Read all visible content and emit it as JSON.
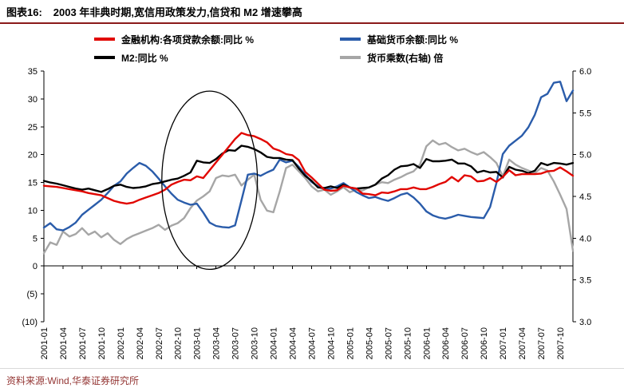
{
  "header": {
    "tag": "图表16:",
    "title": "2003 年非典时期,宽信用政策发力,信贷和 M2 增速攀高"
  },
  "source": "资料来源:Wind,华泰证券研究所",
  "colors": {
    "loans": "#e10600",
    "base_money": "#2a5caa",
    "m2": "#000000",
    "multiplier": "#a6a6a6",
    "rule": "#8b1a1a",
    "source_text": "#943634"
  },
  "chart_data": {
    "type": "line",
    "title": "2003 年非典时期,宽信用政策发力,信贷和 M2 增速攀高",
    "grid": false,
    "legend_position": "top",
    "x_tick_every": 3,
    "x_months": [
      "2001-01",
      "2001-02",
      "2001-03",
      "2001-04",
      "2001-05",
      "2001-06",
      "2001-07",
      "2001-08",
      "2001-09",
      "2001-10",
      "2001-11",
      "2001-12",
      "2002-01",
      "2002-02",
      "2002-03",
      "2002-04",
      "2002-05",
      "2002-06",
      "2002-07",
      "2002-08",
      "2002-09",
      "2002-10",
      "2002-11",
      "2002-12",
      "2003-01",
      "2003-02",
      "2003-03",
      "2003-04",
      "2003-05",
      "2003-06",
      "2003-07",
      "2003-08",
      "2003-09",
      "2003-10",
      "2003-11",
      "2003-12",
      "2004-01",
      "2004-02",
      "2004-03",
      "2004-04",
      "2004-05",
      "2004-06",
      "2004-07",
      "2004-08",
      "2004-09",
      "2004-10",
      "2004-11",
      "2004-12",
      "2005-01",
      "2005-02",
      "2005-03",
      "2005-04",
      "2005-05",
      "2005-06",
      "2005-07",
      "2005-08",
      "2005-09",
      "2005-10",
      "2005-11",
      "2005-12",
      "2006-01",
      "2006-02",
      "2006-03",
      "2006-04",
      "2006-05",
      "2006-06",
      "2006-07",
      "2006-08",
      "2006-09",
      "2006-10",
      "2006-11",
      "2006-12",
      "2007-01",
      "2007-02",
      "2007-03",
      "2007-04",
      "2007-05",
      "2007-06",
      "2007-07",
      "2007-08",
      "2007-09",
      "2007-10",
      "2007-11",
      "2007-12"
    ],
    "left_axis": {
      "min": -10,
      "max": 35,
      "tick_values": [
        35,
        30,
        25,
        20,
        15,
        10,
        5,
        0,
        -5,
        -10
      ],
      "tick_labels": [
        "35",
        "30",
        "25",
        "20",
        "15",
        "10",
        "5",
        "0",
        "(5)",
        "(10)"
      ]
    },
    "right_axis": {
      "min": 3.0,
      "max": 6.0,
      "tick_values": [
        6.0,
        5.5,
        5.0,
        4.5,
        4.0,
        3.5,
        3.0
      ],
      "tick_labels": [
        "6.0",
        "5.5",
        "5.0",
        "4.5",
        "4.0",
        "3.5",
        "3.0"
      ]
    },
    "series": [
      {
        "key": "loans_yoy",
        "name": "金融机构:各项贷款余额:同比 %",
        "axis": "left",
        "color": "#e10600",
        "values": [
          14.4,
          14.3,
          14.2,
          14.0,
          13.8,
          13.6,
          13.4,
          13.1,
          12.9,
          12.7,
          12.2,
          11.7,
          11.4,
          11.2,
          11.4,
          11.9,
          12.3,
          12.7,
          13.1,
          13.7,
          14.6,
          15.1,
          15.5,
          15.4,
          16.1,
          15.8,
          17.2,
          18.6,
          20.0,
          21.4,
          22.8,
          23.9,
          23.5,
          23.3,
          22.8,
          22.2,
          21.1,
          20.7,
          20.1,
          19.9,
          19.0,
          16.9,
          15.9,
          14.8,
          13.7,
          13.5,
          13.6,
          14.4,
          14.1,
          13.9,
          13.0,
          12.9,
          12.7,
          13.2,
          13.1,
          13.4,
          13.8,
          13.8,
          14.1,
          13.8,
          13.8,
          14.2,
          14.7,
          15.1,
          16.0,
          15.2,
          16.3,
          16.1,
          15.2,
          15.3,
          15.8,
          15.1,
          16.0,
          17.2,
          16.3,
          16.5,
          16.5,
          16.5,
          16.6,
          17.0,
          17.1,
          17.7,
          17.0,
          16.2
        ]
      },
      {
        "key": "base_money_yoy",
        "name": "基础货币余额:同比 %",
        "axis": "left",
        "color": "#2a5caa",
        "values": [
          6.9,
          7.7,
          6.6,
          6.4,
          7.0,
          7.8,
          9.2,
          10.1,
          11.0,
          11.9,
          13.1,
          14.4,
          15.2,
          16.6,
          17.6,
          18.5,
          18.0,
          17.0,
          15.7,
          14.3,
          13.0,
          11.9,
          11.4,
          11.0,
          11.2,
          9.6,
          7.8,
          7.2,
          7.0,
          6.9,
          7.3,
          11.8,
          16.4,
          16.6,
          16.2,
          16.8,
          17.3,
          19.1,
          18.6,
          18.9,
          17.8,
          16.4,
          15.1,
          14.3,
          13.8,
          13.9,
          14.3,
          14.9,
          14.1,
          13.3,
          12.7,
          12.2,
          12.4,
          12.0,
          11.7,
          12.2,
          12.8,
          13.1,
          12.3,
          11.2,
          9.8,
          9.1,
          8.7,
          8.5,
          8.8,
          9.2,
          9.0,
          8.8,
          8.7,
          8.6,
          10.6,
          14.9,
          20.1,
          21.6,
          22.5,
          23.4,
          24.9,
          27.1,
          30.3,
          30.9,
          32.9,
          33.1,
          29.6,
          31.5
        ]
      },
      {
        "key": "m2_yoy",
        "name": "M2:同比 %",
        "axis": "left",
        "color": "#000000",
        "values": [
          15.3,
          15.0,
          14.8,
          14.5,
          14.2,
          13.9,
          13.7,
          13.9,
          13.6,
          13.3,
          13.8,
          14.4,
          14.6,
          14.2,
          14.0,
          14.1,
          14.3,
          14.7,
          14.9,
          15.2,
          15.5,
          15.7,
          16.2,
          16.8,
          18.9,
          18.6,
          18.5,
          19.2,
          20.2,
          20.8,
          20.7,
          21.6,
          21.4,
          21.0,
          20.4,
          19.6,
          19.4,
          19.4,
          19.1,
          19.0,
          17.5,
          16.2,
          15.3,
          14.1,
          14.0,
          14.3,
          14.0,
          14.6,
          14.1,
          13.9,
          14.0,
          14.1,
          14.6,
          15.7,
          16.3,
          17.3,
          17.9,
          18.0,
          18.3,
          17.6,
          19.2,
          18.8,
          18.8,
          18.9,
          19.1,
          18.4,
          18.4,
          17.9,
          16.8,
          17.1,
          16.8,
          16.9,
          15.9,
          17.8,
          17.3,
          17.1,
          16.7,
          17.1,
          18.5,
          18.1,
          18.5,
          18.4,
          18.2,
          18.5
        ]
      },
      {
        "key": "money_multiplier",
        "name": "货币乘数(右轴) 倍",
        "axis": "right",
        "color": "#a6a6a6",
        "values": [
          3.82,
          3.95,
          3.92,
          4.08,
          4.02,
          4.05,
          4.12,
          4.04,
          4.08,
          4.01,
          4.06,
          3.98,
          3.93,
          3.99,
          4.03,
          4.06,
          4.09,
          4.12,
          4.16,
          4.1,
          4.15,
          4.18,
          4.24,
          4.36,
          4.45,
          4.5,
          4.56,
          4.72,
          4.75,
          4.74,
          4.76,
          4.63,
          4.7,
          4.76,
          4.46,
          4.33,
          4.31,
          4.56,
          4.84,
          4.88,
          4.8,
          4.72,
          4.62,
          4.56,
          4.58,
          4.52,
          4.56,
          4.61,
          4.55,
          4.58,
          4.57,
          4.61,
          4.64,
          4.67,
          4.66,
          4.7,
          4.73,
          4.77,
          4.8,
          4.88,
          5.1,
          5.17,
          5.12,
          5.14,
          5.09,
          5.05,
          5.07,
          5.03,
          5.0,
          5.03,
          4.97,
          4.9,
          4.74,
          4.94,
          4.88,
          4.84,
          4.81,
          4.78,
          4.84,
          4.81,
          4.68,
          4.52,
          4.35,
          3.85
        ]
      }
    ],
    "annotation": {
      "type": "ellipse",
      "label": "sars-period-highlight",
      "cx_index": 26,
      "cy_value": 15.4,
      "rx_months": 7.5,
      "ry_value": 16
    }
  }
}
